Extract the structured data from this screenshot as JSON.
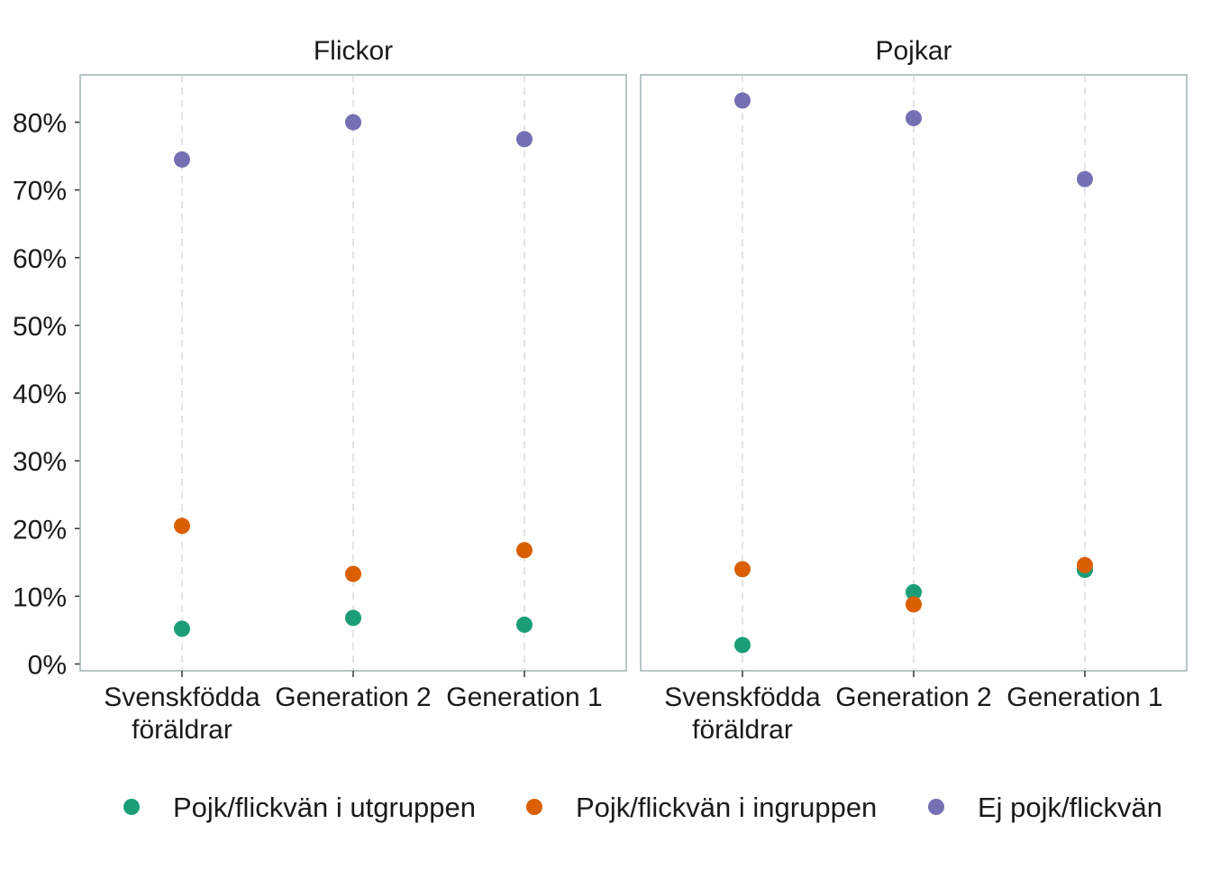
{
  "chart_data": {
    "type": "scatter",
    "y_tick_labels": [
      "0%",
      "10%",
      "20%",
      "30%",
      "40%",
      "50%",
      "60%",
      "70%",
      "80%"
    ],
    "y_ticks": [
      0,
      10,
      20,
      30,
      40,
      50,
      60,
      70,
      80
    ],
    "ylim": [
      -1,
      87
    ],
    "categories": [
      {
        "line1": "Svenskfödda",
        "line2": "föräldrar"
      },
      {
        "line1": "Generation 2",
        "line2": ""
      },
      {
        "line1": "Generation 1",
        "line2": ""
      }
    ],
    "x_grid": "dashed vertical",
    "y_grid": false,
    "legend_position": "bottom",
    "series": [
      {
        "name": "Pojk/flickvän i utgruppen",
        "color": "#1b9e77"
      },
      {
        "name": "Pojk/flickvän i ingruppen",
        "color": "#d95f02"
      },
      {
        "name": "Ej pojk/flickvän",
        "color": "#7570b3"
      }
    ],
    "panels": [
      {
        "title": "Flickor",
        "values": {
          "Pojk/flickvän i utgruppen": [
            5.2,
            6.8,
            5.8
          ],
          "Pojk/flickvän i ingruppen": [
            20.4,
            13.3,
            16.8
          ],
          "Ej pojk/flickvän": [
            74.5,
            80.0,
            77.5
          ]
        }
      },
      {
        "title": "Pojkar",
        "values": {
          "Pojk/flickvän i utgruppen": [
            2.8,
            10.6,
            13.9
          ],
          "Pojk/flickvän i ingruppen": [
            14.0,
            8.8,
            14.6
          ],
          "Ej pojk/flickvän": [
            83.2,
            80.6,
            71.6
          ]
        }
      }
    ]
  }
}
